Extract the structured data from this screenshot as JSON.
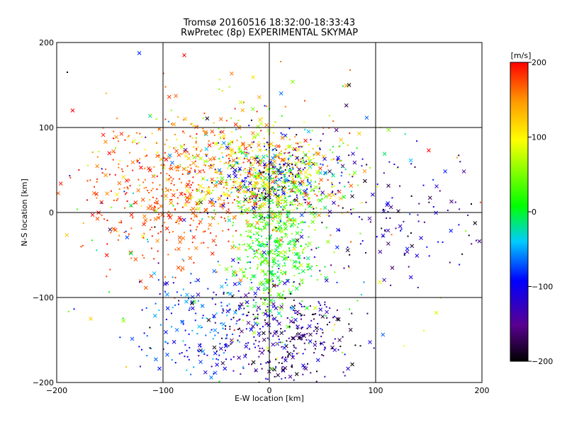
{
  "chart_data": {
    "type": "scatter",
    "title_lines": [
      "Tromsø 20160516 18:32:00-18:33:43",
      "RwPretec (8p) EXPERIMENTAL SKYMAP"
    ],
    "xlabel": "E-W location [km]",
    "ylabel": "N-S location [km]",
    "xlim": [
      -200,
      200
    ],
    "ylim": [
      -200,
      200
    ],
    "x_ticks": [
      -200,
      -100,
      0,
      100,
      200
    ],
    "y_ticks": [
      -200,
      -100,
      0,
      100,
      200
    ],
    "grid_lines_x": [
      -100,
      0,
      100
    ],
    "grid_lines_y": [
      -100,
      0,
      100
    ],
    "colorbar": {
      "unit": "[m/s]",
      "range": [
        -200,
        200
      ],
      "ticks": [
        200,
        100,
        0,
        -100,
        -200
      ],
      "colormap": [
        "#000000",
        "#5a0090",
        "#0000ff",
        "#00ccff",
        "#00ff00",
        "#ffff00",
        "#ff9900",
        "#ff0000"
      ]
    },
    "marker_types": [
      "cross",
      "dot"
    ],
    "approximate_clusters": [
      {
        "cx": -90,
        "cy": 20,
        "sx": 40,
        "sy": 45,
        "vmin": 150,
        "vmax": 200,
        "n": 420
      },
      {
        "cx": 10,
        "cy": 40,
        "sx": 30,
        "sy": 25,
        "vmin": -200,
        "vmax": 200,
        "n": 650
      },
      {
        "cx": 5,
        "cy": -40,
        "sx": 18,
        "sy": 45,
        "vmin": -20,
        "vmax": 80,
        "n": 450
      },
      {
        "cx": 15,
        "cy": -145,
        "sx": 35,
        "sy": 30,
        "vmin": -200,
        "vmax": -100,
        "n": 320
      },
      {
        "cx": -55,
        "cy": -130,
        "sx": 35,
        "sy": 40,
        "vmin": -120,
        "vmax": -40,
        "n": 200
      },
      {
        "cx": -40,
        "cy": 60,
        "sx": 50,
        "sy": 35,
        "vmin": 50,
        "vmax": 180,
        "n": 300
      },
      {
        "cx": 120,
        "cy": -10,
        "sx": 45,
        "sy": 40,
        "vmin": -200,
        "vmax": -80,
        "n": 110
      },
      {
        "cx": 0,
        "cy": 0,
        "sx": 110,
        "sy": 100,
        "vmin": -200,
        "vmax": 200,
        "n": 240
      }
    ],
    "notable_points": [
      {
        "x": -80,
        "y": 185,
        "v": 200,
        "marker": "cross"
      },
      {
        "x": -185,
        "y": 120,
        "v": 200,
        "marker": "cross"
      },
      {
        "x": -190,
        "y": 165,
        "v": -200,
        "marker": "dot"
      },
      {
        "x": 75,
        "y": 150,
        "v": -200,
        "marker": "cross"
      },
      {
        "x": 157,
        "y": -118,
        "v": 80,
        "marker": "cross"
      },
      {
        "x": -168,
        "y": -125,
        "v": 120,
        "marker": "cross"
      },
      {
        "x": 190,
        "y": 10,
        "v": -200,
        "marker": "dot"
      },
      {
        "x": 150,
        "y": 73,
        "v": 200,
        "marker": "cross"
      }
    ]
  }
}
